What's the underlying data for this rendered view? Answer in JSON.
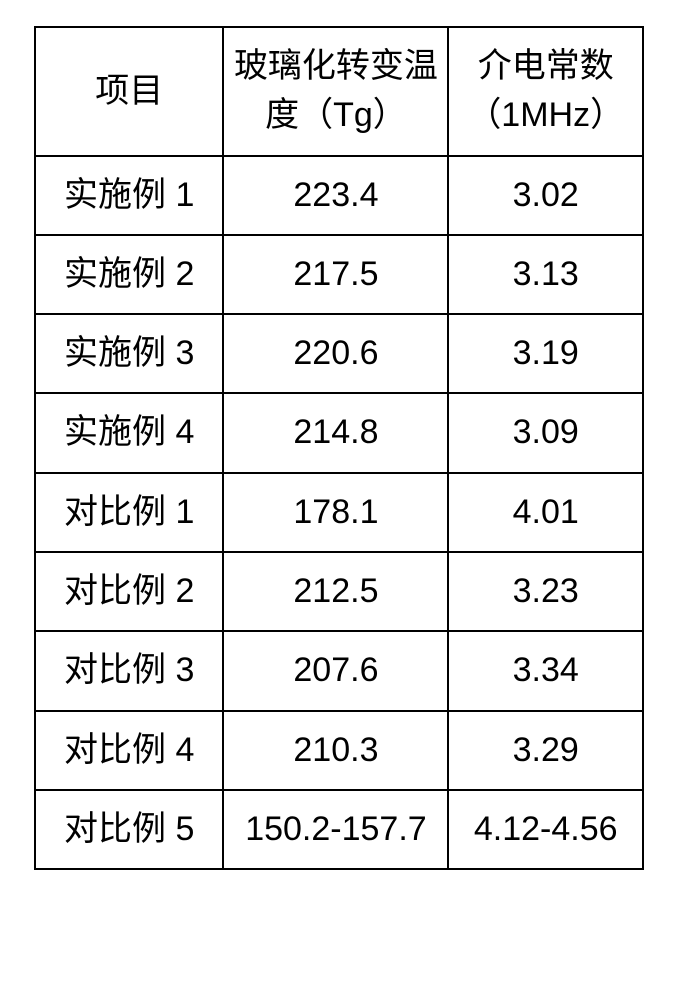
{
  "table": {
    "type": "table",
    "background_color": "#ffffff",
    "border_color": "#000000",
    "text_color": "#000000",
    "font_size_pt": 26,
    "columns": [
      {
        "key": "item",
        "label": "项目",
        "width_pct": 31,
        "align": "center"
      },
      {
        "key": "tg",
        "label": "玻璃化转变温度（Tg）",
        "width_pct": 37,
        "align": "center"
      },
      {
        "key": "diel",
        "label": "介电常数（1MHz）",
        "width_pct": 32,
        "align": "center"
      }
    ],
    "rows": [
      {
        "item": "实施例 1",
        "tg": "223.4",
        "diel": "3.02"
      },
      {
        "item": "实施例 2",
        "tg": "217.5",
        "diel": "3.13"
      },
      {
        "item": "实施例 3",
        "tg": "220.6",
        "diel": "3.19"
      },
      {
        "item": "实施例 4",
        "tg": "214.8",
        "diel": "3.09"
      },
      {
        "item": "对比例 1",
        "tg": "178.1",
        "diel": "4.01"
      },
      {
        "item": "对比例 2",
        "tg": "212.5",
        "diel": "3.23"
      },
      {
        "item": "对比例 3",
        "tg": "207.6",
        "diel": "3.34"
      },
      {
        "item": "对比例 4",
        "tg": "210.3",
        "diel": "3.29"
      },
      {
        "item": "对比例 5",
        "tg": "150.2-157.7",
        "diel": "4.12-4.56"
      }
    ]
  }
}
